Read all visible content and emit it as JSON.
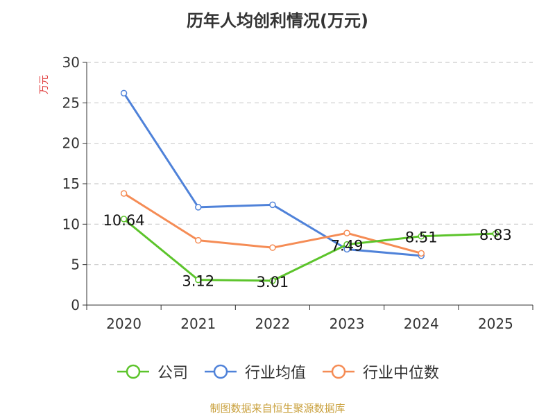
{
  "title": "历年人均创利情况(万元)",
  "y_unit": "万元",
  "source": "制图数据来自恒生聚源数据库",
  "chart_data": {
    "type": "line",
    "title": "历年人均创利情况(万元)",
    "ylabel": "万元",
    "xlabel": "",
    "categories": [
      "2020",
      "2021",
      "2022",
      "2023",
      "2024",
      "2025"
    ],
    "ylim": [
      0,
      30
    ],
    "yticks": [
      0,
      5,
      10,
      15,
      20,
      25,
      30
    ],
    "grid": true,
    "legend_position": "bottom",
    "series": [
      {
        "name": "公司",
        "color": "#5cc42b",
        "values": [
          10.64,
          3.12,
          3.01,
          7.49,
          8.51,
          8.83
        ],
        "labels": [
          "10.64",
          "3.12",
          "3.01",
          "7.49",
          "8.51",
          "8.83"
        ]
      },
      {
        "name": "行业均值",
        "color": "#4f82d9",
        "values": [
          26.2,
          12.1,
          12.4,
          6.9,
          6.1,
          null
        ]
      },
      {
        "name": "行业中位数",
        "color": "#f58c55",
        "values": [
          13.8,
          8.0,
          7.1,
          8.9,
          6.4,
          null
        ]
      }
    ]
  }
}
